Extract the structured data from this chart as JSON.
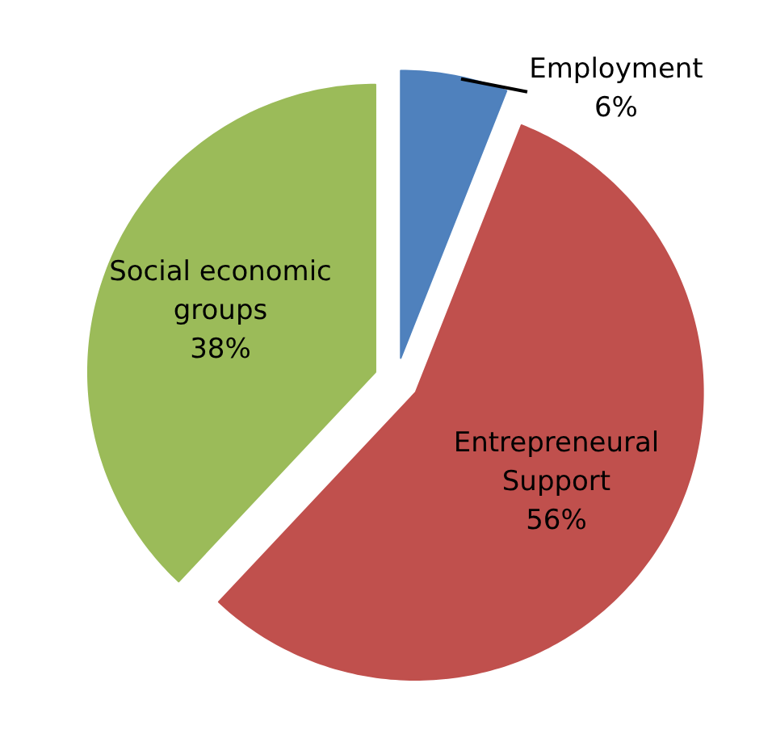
{
  "chart_data": {
    "type": "pie",
    "categories": [
      "Employment",
      "Entrepreneural Support",
      "Social economic groups"
    ],
    "values": [
      6,
      56,
      38
    ],
    "colors": [
      "#4f81bd",
      "#c0504d",
      "#9bbb59"
    ],
    "value_labels": [
      "6%",
      "56%",
      "38%"
    ]
  }
}
